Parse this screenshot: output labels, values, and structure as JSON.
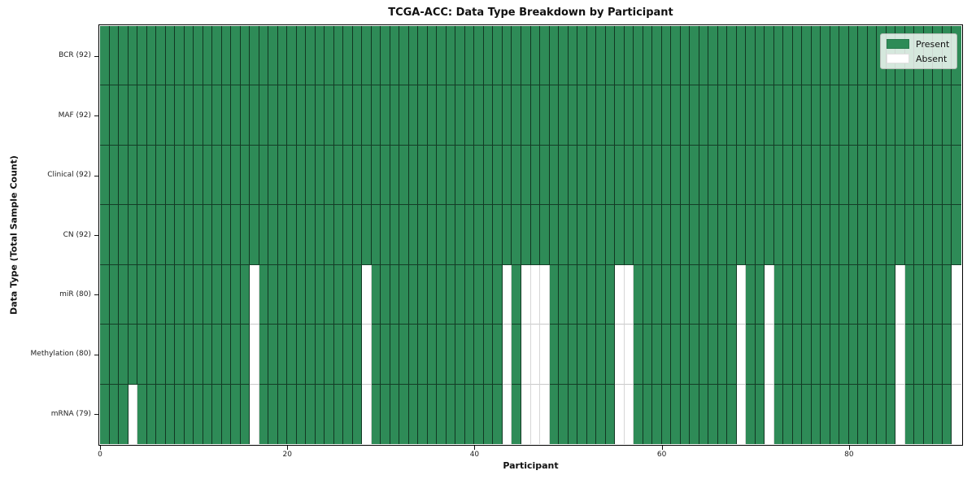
{
  "chart_data": {
    "type": "heatmap",
    "title": "TCGA-ACC: Data Type Breakdown by Participant",
    "xlabel": "Participant",
    "ylabel": "Data Type (Total Sample Count)",
    "n_participants": 92,
    "x_ticks": [
      0,
      20,
      40,
      60,
      80
    ],
    "rows": [
      {
        "label": "BCR (92)",
        "data_type": "BCR",
        "present_count": 92,
        "absent_participants": []
      },
      {
        "label": "MAF (92)",
        "data_type": "MAF",
        "present_count": 92,
        "absent_participants": []
      },
      {
        "label": "Clinical (92)",
        "data_type": "Clinical",
        "present_count": 92,
        "absent_participants": []
      },
      {
        "label": "CN (92)",
        "data_type": "CN",
        "present_count": 92,
        "absent_participants": []
      },
      {
        "label": "miR (80)",
        "data_type": "miR",
        "present_count": 80,
        "absent_participants": [
          16,
          28,
          43,
          45,
          46,
          47,
          55,
          56,
          68,
          71,
          85,
          91
        ]
      },
      {
        "label": "Methylation (80)",
        "data_type": "Methylation",
        "present_count": 80,
        "absent_participants": [
          16,
          28,
          43,
          45,
          46,
          47,
          55,
          56,
          68,
          71,
          85,
          91
        ]
      },
      {
        "label": "mRNA (79)",
        "data_type": "mRNA",
        "present_count": 79,
        "absent_participants": [
          3,
          16,
          28,
          43,
          45,
          46,
          47,
          55,
          56,
          68,
          71,
          85,
          91
        ]
      }
    ],
    "legend": [
      {
        "label": "Present",
        "color": "#2e8b57"
      },
      {
        "label": "Absent",
        "color": "#ffffff"
      }
    ],
    "colors": {
      "present": "#2e8b57",
      "absent": "#ffffff"
    },
    "layout": {
      "grid": "on",
      "legend_position": "upper right"
    }
  }
}
